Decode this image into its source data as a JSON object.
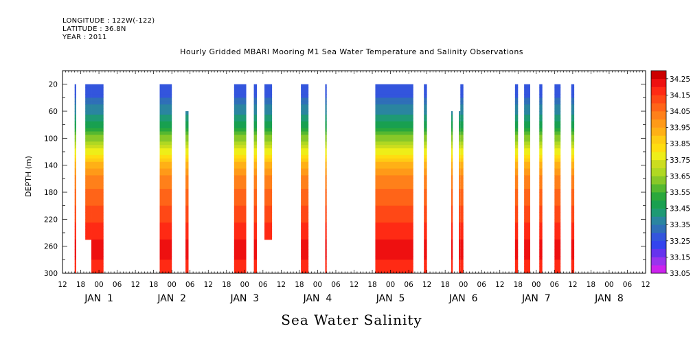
{
  "header": {
    "longitude": "LONGITUDE : 122W(-122)",
    "latitude": "LATITUDE : 36.8N",
    "year": "YEAR : 2011"
  },
  "chart_data": {
    "type": "heatmap",
    "title": "Hourly Gridded MBARI Mooring M1 Sea Water Temperature and Salinity Observations",
    "bottom_title": "Sea Water Salinity",
    "ylabel": "DEPTH (m)",
    "ylim": [
      0,
      300
    ],
    "y_reversed": true,
    "y_ticks": [
      20,
      60,
      100,
      140,
      180,
      220,
      260,
      300
    ],
    "x_unit": "hours from JAN 1 00:00 (2011)",
    "xlim": [
      -12,
      180
    ],
    "x_ticks": [
      {
        "h": -12,
        "label": "12"
      },
      {
        "h": -6,
        "label": "18"
      },
      {
        "h": 0,
        "label": "00"
      },
      {
        "h": 6,
        "label": "06"
      },
      {
        "h": 12,
        "label": "12"
      },
      {
        "h": 18,
        "label": "18"
      },
      {
        "h": 24,
        "label": "00"
      },
      {
        "h": 30,
        "label": "06"
      },
      {
        "h": 36,
        "label": "12"
      },
      {
        "h": 42,
        "label": "18"
      },
      {
        "h": 48,
        "label": "00"
      },
      {
        "h": 54,
        "label": "06"
      },
      {
        "h": 60,
        "label": "12"
      },
      {
        "h": 66,
        "label": "18"
      },
      {
        "h": 72,
        "label": "00"
      },
      {
        "h": 78,
        "label": "06"
      },
      {
        "h": 84,
        "label": "12"
      },
      {
        "h": 90,
        "label": "18"
      },
      {
        "h": 96,
        "label": "00"
      },
      {
        "h": 102,
        "label": "06"
      },
      {
        "h": 108,
        "label": "12"
      },
      {
        "h": 114,
        "label": "18"
      },
      {
        "h": 120,
        "label": "00"
      },
      {
        "h": 126,
        "label": "06"
      },
      {
        "h": 132,
        "label": "12"
      },
      {
        "h": 138,
        "label": "18"
      },
      {
        "h": 144,
        "label": "00"
      },
      {
        "h": 150,
        "label": "06"
      },
      {
        "h": 156,
        "label": "12"
      },
      {
        "h": 162,
        "label": "18"
      },
      {
        "h": 168,
        "label": "00"
      },
      {
        "h": 174,
        "label": "06"
      },
      {
        "h": 180,
        "label": "12"
      }
    ],
    "day_labels": [
      {
        "h": 0,
        "label": "JAN  1"
      },
      {
        "h": 24,
        "label": "JAN  2"
      },
      {
        "h": 48,
        "label": "JAN  3"
      },
      {
        "h": 72,
        "label": "JAN  4"
      },
      {
        "h": 96,
        "label": "JAN  5"
      },
      {
        "h": 120,
        "label": "JAN  6"
      },
      {
        "h": 144,
        "label": "JAN  7"
      },
      {
        "h": 168,
        "label": "JAN  8"
      }
    ],
    "colorbar": {
      "levels": [
        33.05,
        33.1,
        33.15,
        33.2,
        33.25,
        33.3,
        33.35,
        33.4,
        33.45,
        33.5,
        33.55,
        33.6,
        33.65,
        33.7,
        33.75,
        33.8,
        33.85,
        33.9,
        33.95,
        34.0,
        34.05,
        34.1,
        34.15,
        34.2,
        34.25,
        34.3
      ],
      "labels": [
        "34.25",
        "34.15",
        "34.05",
        "33.95",
        "33.85",
        "33.75",
        "33.65",
        "33.55",
        "33.45",
        "33.35",
        "33.25",
        "33.15",
        "33.05"
      ],
      "colors": [
        "#cc22ee",
        "#9933ee",
        "#6633ee",
        "#3344ee",
        "#3355dd",
        "#2f6fb8",
        "#2a85a0",
        "#1e9a74",
        "#18a050",
        "#2aa83c",
        "#55b830",
        "#88c828",
        "#b0d822",
        "#ccdd1e",
        "#eeee18",
        "#ffdd10",
        "#ffcc14",
        "#ffb016",
        "#ff9a18",
        "#ff801a",
        "#ff6418",
        "#ff4816",
        "#ff2a14",
        "#ee1010",
        "#cc0000"
      ]
    },
    "profile": {
      "depth": [
        20,
        40,
        60,
        80,
        100,
        120,
        140,
        160,
        180,
        200,
        220,
        240,
        260,
        280,
        300
      ],
      "salinity": [
        33.27,
        33.3,
        33.38,
        33.48,
        33.62,
        33.78,
        33.92,
        34.02,
        34.06,
        34.1,
        34.14,
        34.18,
        34.22,
        34.2,
        34.17
      ]
    },
    "segments": [
      {
        "start": -8,
        "end": -7.5,
        "top": 20,
        "bottom": 300
      },
      {
        "start": -4.5,
        "end": -2.5,
        "top": 20,
        "bottom": 250
      },
      {
        "start": -2.5,
        "end": 1.5,
        "top": 20,
        "bottom": 300
      },
      {
        "start": 20,
        "end": 24,
        "top": 20,
        "bottom": 300
      },
      {
        "start": 28.5,
        "end": 29.5,
        "top": 60,
        "bottom": 300
      },
      {
        "start": 44.5,
        "end": 48.5,
        "top": 20,
        "bottom": 300
      },
      {
        "start": 51,
        "end": 52,
        "top": 20,
        "bottom": 300
      },
      {
        "start": 54.5,
        "end": 57,
        "top": 20,
        "bottom": 250
      },
      {
        "start": 66.5,
        "end": 69,
        "top": 20,
        "bottom": 300
      },
      {
        "start": 74.5,
        "end": 75,
        "top": 20,
        "bottom": 300
      },
      {
        "start": 91,
        "end": 103.5,
        "top": 20,
        "bottom": 300
      },
      {
        "start": 107,
        "end": 108,
        "top": 20,
        "bottom": 300
      },
      {
        "start": 116,
        "end": 116.5,
        "top": 60,
        "bottom": 300
      },
      {
        "start": 118.5,
        "end": 119,
        "top": 60,
        "bottom": 300
      },
      {
        "start": 119,
        "end": 120,
        "top": 20,
        "bottom": 300
      },
      {
        "start": 137,
        "end": 138,
        "top": 20,
        "bottom": 300
      },
      {
        "start": 140,
        "end": 142,
        "top": 20,
        "bottom": 300
      },
      {
        "start": 145,
        "end": 146,
        "top": 20,
        "bottom": 300
      },
      {
        "start": 150,
        "end": 152,
        "top": 20,
        "bottom": 300
      },
      {
        "start": 155.5,
        "end": 156.5,
        "top": 20,
        "bottom": 300
      }
    ]
  }
}
